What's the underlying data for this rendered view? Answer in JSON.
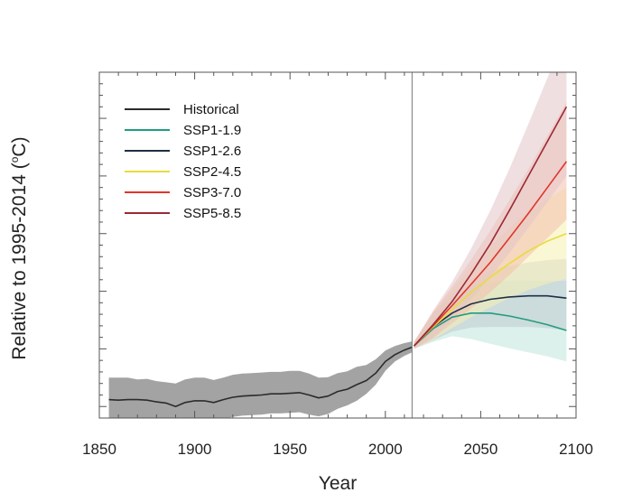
{
  "chart_data": {
    "type": "line",
    "xlabel": "Year",
    "ylabel": "Relative to 1995-2014 (",
    "ylabel_unit": "o",
    "ylabel_suffix": "C)",
    "xlim": [
      1850,
      2100
    ],
    "ylim": [
      -1.2,
      4.8
    ],
    "x_ticks": [
      1850,
      1900,
      1950,
      2000,
      2050,
      2100
    ],
    "y_ticks": [
      -1,
      0,
      1,
      2,
      3,
      4
    ],
    "y_tick_labels_shown": false,
    "reference_year_line": 2014,
    "legend_position": "top-left",
    "series": [
      {
        "name": "Historical",
        "color": "#2b2b2b",
        "band_color": "#9e9e9e",
        "x": [
          1855,
          1860,
          1865,
          1870,
          1875,
          1880,
          1885,
          1890,
          1895,
          1900,
          1905,
          1910,
          1915,
          1920,
          1925,
          1930,
          1935,
          1940,
          1945,
          1950,
          1955,
          1960,
          1965,
          1970,
          1975,
          1980,
          1985,
          1990,
          1995,
          2000,
          2005,
          2010,
          2014
        ],
        "values": [
          -0.88,
          -0.89,
          -0.88,
          -0.88,
          -0.89,
          -0.92,
          -0.94,
          -1.0,
          -0.93,
          -0.9,
          -0.9,
          -0.93,
          -0.88,
          -0.84,
          -0.82,
          -0.81,
          -0.8,
          -0.78,
          -0.78,
          -0.77,
          -0.76,
          -0.8,
          -0.85,
          -0.82,
          -0.74,
          -0.7,
          -0.62,
          -0.55,
          -0.42,
          -0.22,
          -0.1,
          -0.02,
          0.03
        ],
        "lower": [
          -1.3,
          -1.3,
          -1.29,
          -1.3,
          -1.32,
          -1.33,
          -1.36,
          -1.4,
          -1.33,
          -1.28,
          -1.28,
          -1.28,
          -1.23,
          -1.18,
          -1.16,
          -1.15,
          -1.14,
          -1.12,
          -1.12,
          -1.11,
          -1.1,
          -1.14,
          -1.17,
          -1.13,
          -1.04,
          -0.98,
          -0.9,
          -0.78,
          -0.62,
          -0.38,
          -0.22,
          -0.12,
          -0.06
        ],
        "upper": [
          -0.5,
          -0.5,
          -0.5,
          -0.53,
          -0.52,
          -0.56,
          -0.58,
          -0.6,
          -0.53,
          -0.5,
          -0.5,
          -0.54,
          -0.5,
          -0.45,
          -0.43,
          -0.42,
          -0.41,
          -0.4,
          -0.4,
          -0.38,
          -0.38,
          -0.43,
          -0.5,
          -0.49,
          -0.42,
          -0.39,
          -0.31,
          -0.28,
          -0.18,
          -0.03,
          0.05,
          0.1,
          0.13
        ]
      },
      {
        "name": "SSP1-1.9",
        "color": "#1f9e7e",
        "band_color": "#bfe5da",
        "x": [
          2015,
          2025,
          2035,
          2045,
          2055,
          2065,
          2075,
          2085,
          2095
        ],
        "values": [
          0.05,
          0.35,
          0.55,
          0.62,
          0.62,
          0.57,
          0.5,
          0.42,
          0.32
        ],
        "lower": [
          0.0,
          0.12,
          0.22,
          0.17,
          0.09,
          0.01,
          -0.06,
          -0.13,
          -0.22
        ],
        "upper": [
          0.12,
          0.6,
          0.9,
          1.08,
          1.16,
          1.18,
          1.18,
          1.18,
          1.18
        ]
      },
      {
        "name": "SSP1-2.6",
        "color": "#1e3044",
        "band_color": "#c0c8d0",
        "x": [
          2015,
          2025,
          2035,
          2045,
          2055,
          2065,
          2075,
          2085,
          2095
        ],
        "values": [
          0.05,
          0.38,
          0.62,
          0.78,
          0.86,
          0.9,
          0.92,
          0.92,
          0.88
        ],
        "lower": [
          0.0,
          0.15,
          0.3,
          0.37,
          0.38,
          0.38,
          0.38,
          0.36,
          0.32
        ],
        "upper": [
          0.12,
          0.62,
          0.95,
          1.2,
          1.36,
          1.44,
          1.5,
          1.54,
          1.56
        ]
      },
      {
        "name": "SSP2-4.5",
        "color": "#e8dc3c",
        "band_color": "#f6f0b2",
        "x": [
          2015,
          2025,
          2035,
          2045,
          2055,
          2065,
          2075,
          2085,
          2095
        ],
        "values": [
          0.05,
          0.38,
          0.68,
          0.98,
          1.24,
          1.48,
          1.7,
          1.87,
          2.0
        ],
        "lower": [
          0.0,
          0.16,
          0.36,
          0.55,
          0.72,
          0.88,
          1.02,
          1.13,
          1.22
        ],
        "upper": [
          0.12,
          0.62,
          1.02,
          1.42,
          1.78,
          2.1,
          2.38,
          2.6,
          2.8
        ]
      },
      {
        "name": "SSP3-7.0",
        "color": "#e0362c",
        "band_color": "#f3c0ad",
        "x": [
          2015,
          2025,
          2035,
          2045,
          2055,
          2065,
          2075,
          2085,
          2095
        ],
        "values": [
          0.05,
          0.4,
          0.75,
          1.12,
          1.5,
          1.92,
          2.35,
          2.8,
          3.25
        ],
        "lower": [
          0.0,
          0.18,
          0.44,
          0.7,
          0.98,
          1.28,
          1.6,
          1.92,
          2.24
        ],
        "upper": [
          0.12,
          0.64,
          1.08,
          1.55,
          2.05,
          2.58,
          3.12,
          3.7,
          4.28
        ]
      },
      {
        "name": "SSP5-8.5",
        "color": "#9b2835",
        "band_color": "#e4c4c6",
        "x": [
          2015,
          2025,
          2035,
          2045,
          2055,
          2065,
          2075,
          2085,
          2095
        ],
        "values": [
          0.05,
          0.42,
          0.82,
          1.3,
          1.82,
          2.4,
          3.0,
          3.6,
          4.2
        ],
        "lower": [
          0.0,
          0.2,
          0.5,
          0.86,
          1.25,
          1.66,
          2.1,
          2.55,
          3.0
        ],
        "upper": [
          0.12,
          0.66,
          1.16,
          1.74,
          2.4,
          3.12,
          3.9,
          4.7,
          5.5
        ]
      }
    ]
  }
}
